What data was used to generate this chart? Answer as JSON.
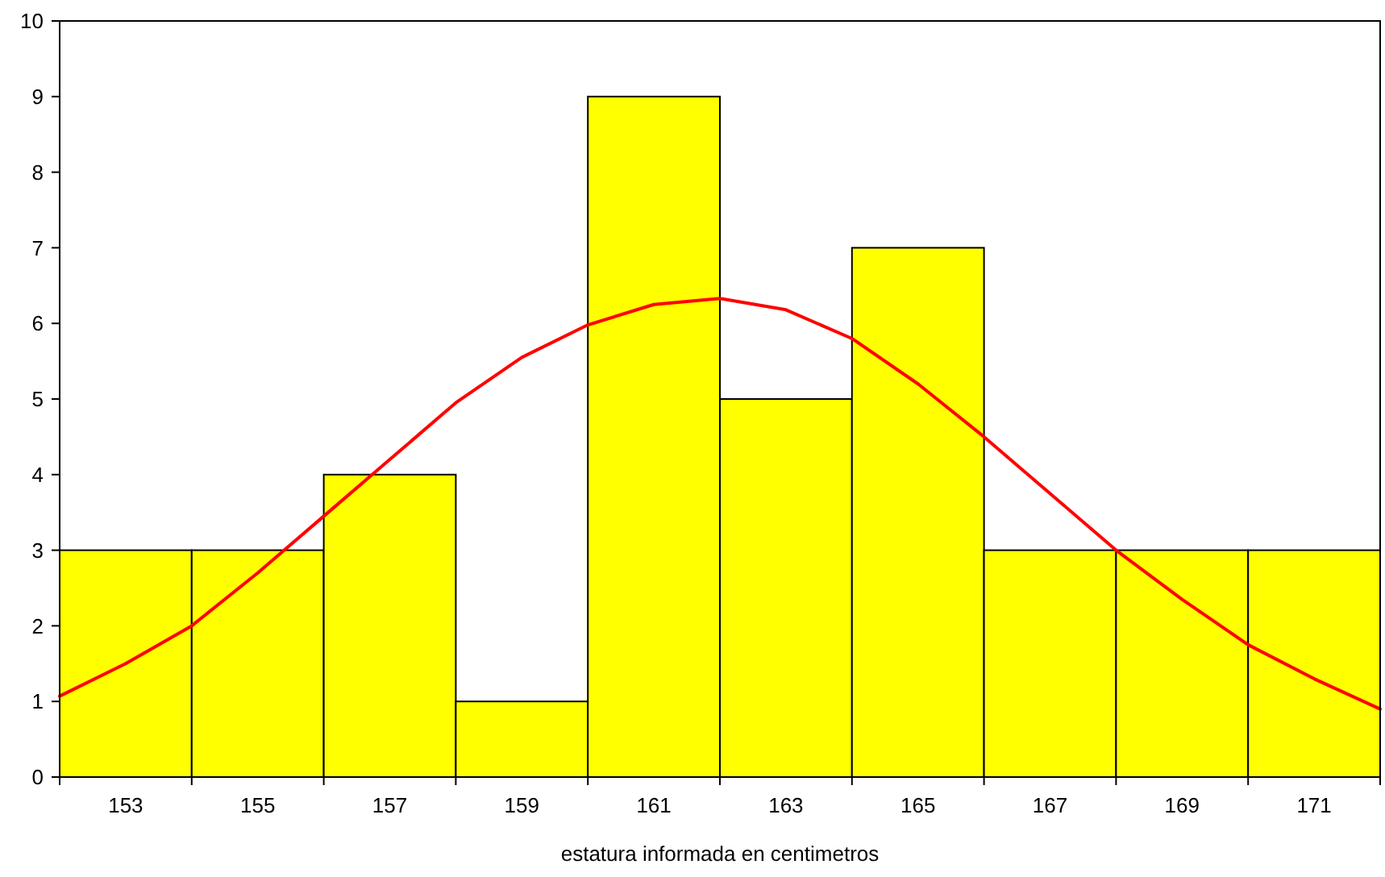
{
  "chart_data": {
    "type": "histogram",
    "xlabel": "estatura informada en centimetros",
    "xlim": [
      152,
      172
    ],
    "xticks": [
      153,
      155,
      157,
      159,
      161,
      163,
      165,
      167,
      169,
      171
    ],
    "ylim": [
      0,
      10
    ],
    "yticks": [
      0,
      1,
      2,
      3,
      4,
      5,
      6,
      7,
      8,
      9,
      10
    ],
    "grid": false,
    "series": [
      {
        "color": "#ffff00",
        "bins": [
          152,
          154,
          156,
          158,
          160,
          162,
          164,
          166,
          168,
          170,
          172
        ],
        "values": [
          3,
          3,
          4,
          1,
          9,
          5,
          7,
          3,
          3,
          3
        ]
      },
      {
        "type": "line",
        "color": "#ff0000",
        "line_style": "solid",
        "marker": "none",
        "x": [
          152,
          153,
          154,
          155,
          156,
          157,
          158,
          159,
          160,
          161,
          162,
          163,
          164,
          165,
          166,
          167,
          168,
          169,
          170,
          171,
          172
        ],
        "values": [
          1.07,
          1.5,
          2.0,
          2.7,
          3.45,
          4.2,
          4.95,
          5.55,
          5.98,
          6.25,
          6.33,
          6.18,
          5.8,
          5.2,
          4.5,
          3.75,
          3.0,
          2.35,
          1.75,
          1.3,
          0.9
        ]
      }
    ]
  }
}
